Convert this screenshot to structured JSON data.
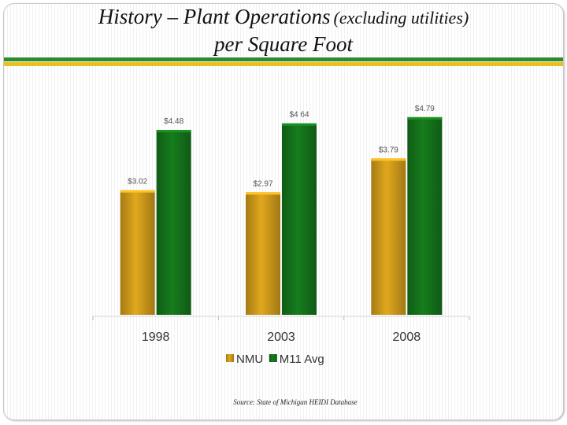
{
  "title_main": "History – Plant Operations",
  "title_paren": "(excluding utilities)",
  "title_line2": "per Square Foot",
  "source": "Source:  State of Michigan HEIDI Database",
  "chart_data": {
    "type": "bar",
    "title": "History – Plant Operations (excluding utilities) per Square Foot",
    "xlabel": "",
    "ylabel": "",
    "categories": [
      "1998",
      "2003",
      "2008"
    ],
    "series": [
      {
        "name": "NMU",
        "color": "#c9961a",
        "values": [
          3.02,
          2.97,
          3.79
        ],
        "labels": [
          "$3.02",
          "$2.97",
          "$3.79"
        ]
      },
      {
        "name": "M11 Avg",
        "color": "#14701a",
        "values": [
          4.48,
          4.64,
          4.79
        ],
        "labels": [
          "$4.48",
          "$4 64",
          "$4.79"
        ]
      }
    ],
    "ylim": [
      0,
      5.15
    ],
    "grid": false,
    "legend": "bottom"
  }
}
